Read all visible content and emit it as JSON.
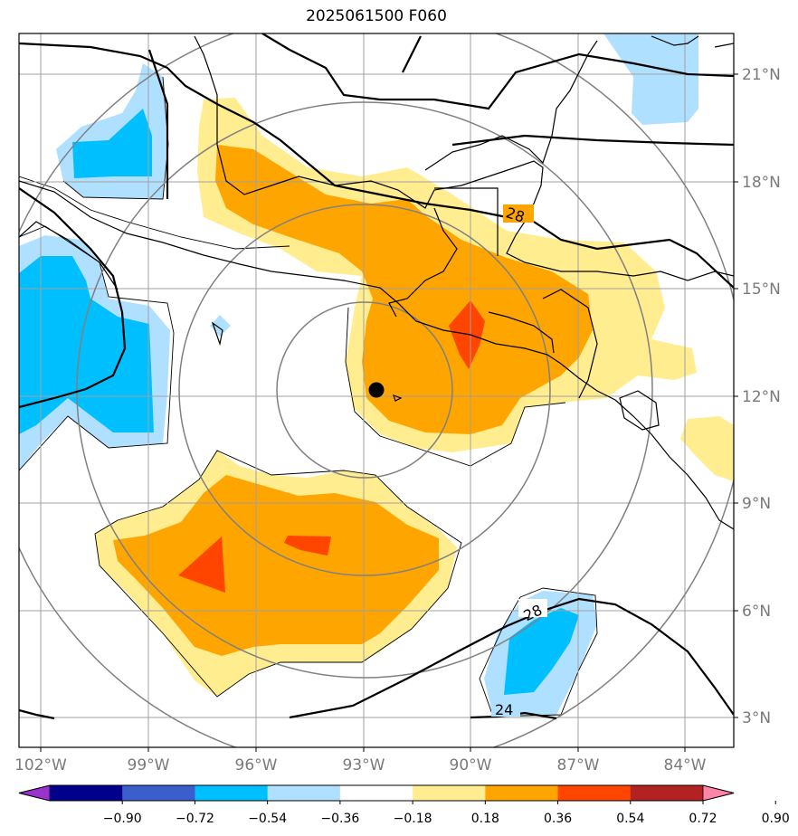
{
  "title": "2025061500 F060",
  "map": {
    "lon_labels": [
      "102°W",
      "99°W",
      "96°W",
      "93°W",
      "90°W",
      "87°W",
      "84°W"
    ],
    "lat_labels": [
      "21°N",
      "18°N",
      "15°N",
      "12°N",
      "9°N",
      "6°N",
      "3°N"
    ],
    "contour_labels": [
      "28",
      "28",
      "24"
    ],
    "storm_center": {
      "lon": -92.6,
      "lat": 12.2
    },
    "colors": {
      "gridline": "#a0a0a0",
      "range_rings": "#808080",
      "coastline": "#000000",
      "sst_contour": "#000000"
    }
  },
  "colorbar": {
    "tick_labels": [
      "−0.90",
      "−0.72",
      "−0.54",
      "−0.36",
      "−0.18",
      "0.18",
      "0.36",
      "0.54",
      "0.72",
      "0.90"
    ],
    "colors": [
      "#9933cc",
      "#00008b",
      "#3a5fcd",
      "#00bfff",
      "#b0e0ff",
      "#ffffff",
      "#ffed90",
      "#ffa500",
      "#ff4500",
      "#b22222",
      "#ff85a8"
    ]
  }
}
